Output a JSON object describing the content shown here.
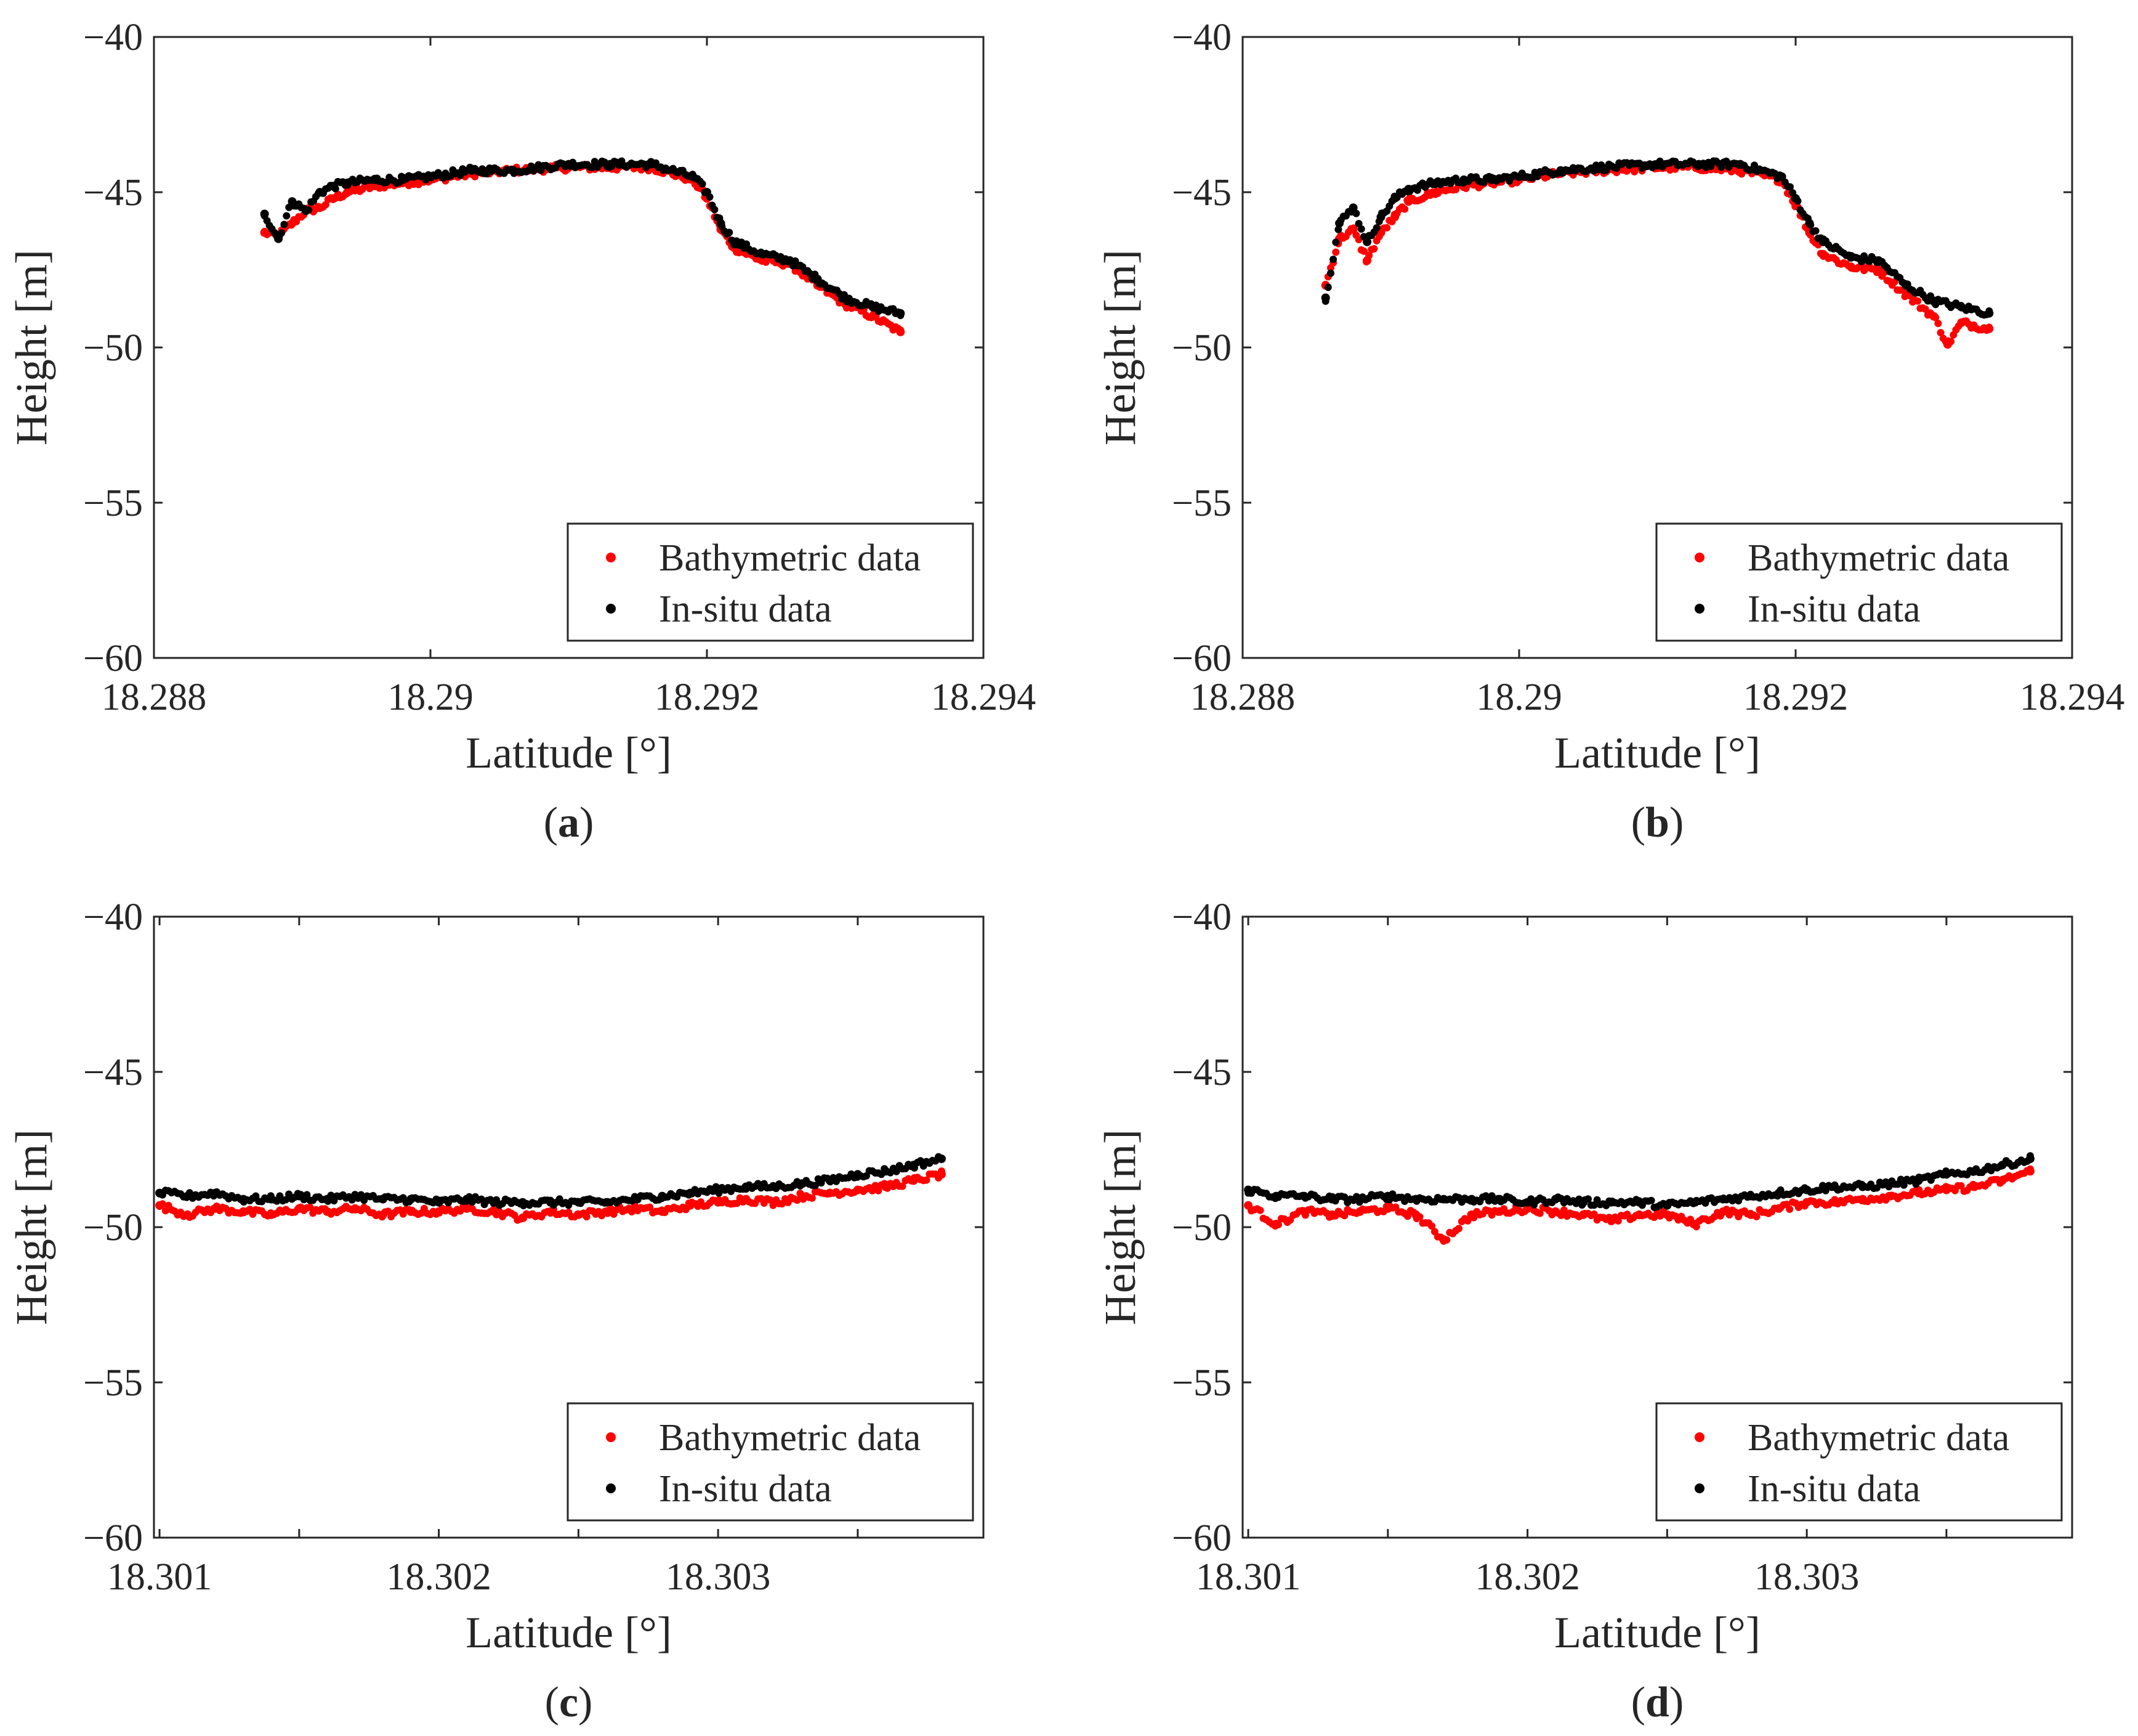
{
  "figure": {
    "colors": {
      "bathymetric": "#ff0000",
      "in_situ": "#000000",
      "axes": "#262626"
    }
  },
  "chart_data": [
    {
      "id": "a",
      "type": "scatter",
      "panel_label": {
        "open": "(",
        "letter": "a",
        "close": ")"
      },
      "xlabel": "Latitude [°]",
      "ylabel": "Height [m]",
      "xlim": [
        18.288,
        18.294
      ],
      "ylim": [
        -60,
        -40
      ],
      "xticks": [
        18.288,
        18.29,
        18.292,
        18.294
      ],
      "xtick_labels": [
        "18.288",
        "18.29",
        "18.292",
        "18.294"
      ],
      "yticks": [
        -60,
        -55,
        -50,
        -45,
        -40
      ],
      "ytick_labels": [
        "−60",
        "−55",
        "−50",
        "−45",
        "−40"
      ],
      "grid": false,
      "legend": {
        "position": "bottom-right",
        "entries": [
          "Bathymetric data",
          "In-situ data"
        ]
      },
      "series": [
        {
          "name": "Bathymetric data",
          "color": "#ff0000",
          "x": [
            18.2888,
            18.2889,
            18.289,
            18.2891,
            18.2892,
            18.2893,
            18.2894,
            18.2896,
            18.2898,
            18.29,
            18.2903,
            18.2906,
            18.291,
            18.2913,
            18.2916,
            18.2919,
            18.292,
            18.2921,
            18.2922,
            18.2924,
            18.2926,
            18.2928,
            18.293,
            18.2932,
            18.2934
          ],
          "y": [
            -46.3,
            -46.4,
            -46.0,
            -45.6,
            -45.5,
            -45.2,
            -45.0,
            -44.8,
            -44.7,
            -44.6,
            -44.4,
            -44.3,
            -44.2,
            -44.2,
            -44.2,
            -44.6,
            -45.2,
            -46.2,
            -46.8,
            -47.2,
            -47.3,
            -48.0,
            -48.6,
            -49.0,
            -49.5
          ]
        },
        {
          "name": "In-situ data",
          "color": "#000000",
          "x": [
            18.2888,
            18.2889,
            18.289,
            18.2891,
            18.2892,
            18.2893,
            18.2894,
            18.2896,
            18.2898,
            18.29,
            18.2903,
            18.2906,
            18.291,
            18.2913,
            18.2916,
            18.2919,
            18.292,
            18.2921,
            18.2922,
            18.2924,
            18.2926,
            18.2928,
            18.293,
            18.2932,
            18.2934
          ],
          "y": [
            -45.7,
            -46.5,
            -45.3,
            -45.6,
            -45.0,
            -44.8,
            -44.7,
            -44.6,
            -44.6,
            -44.5,
            -44.3,
            -44.3,
            -44.1,
            -44.1,
            -44.1,
            -44.5,
            -45.0,
            -46.0,
            -46.6,
            -47.0,
            -47.2,
            -47.8,
            -48.4,
            -48.7,
            -48.9
          ]
        }
      ]
    },
    {
      "id": "b",
      "type": "scatter",
      "panel_label": {
        "open": "(",
        "letter": "b",
        "close": ")"
      },
      "xlabel": "Latitude [°]",
      "ylabel": "Height [m]",
      "xlim": [
        18.288,
        18.294
      ],
      "ylim": [
        -60,
        -40
      ],
      "xticks": [
        18.288,
        18.29,
        18.292,
        18.294
      ],
      "xtick_labels": [
        "18.288",
        "18.29",
        "18.292",
        "18.294"
      ],
      "yticks": [
        -60,
        -55,
        -50,
        -45,
        -40
      ],
      "ytick_labels": [
        "−60",
        "−55",
        "−50",
        "−45",
        "−40"
      ],
      "grid": false,
      "legend": {
        "position": "bottom-right",
        "entries": [
          "Bathymetric data",
          "In-situ data"
        ]
      },
      "series": [
        {
          "name": "Bathymetric data",
          "color": "#ff0000",
          "x": [
            18.2886,
            18.2887,
            18.2888,
            18.2889,
            18.289,
            18.2891,
            18.2892,
            18.2894,
            18.2896,
            18.2898,
            18.29,
            18.2903,
            18.2906,
            18.291,
            18.2913,
            18.2916,
            18.2919,
            18.292,
            18.2921,
            18.2922,
            18.2924,
            18.2926,
            18.2928,
            18.293,
            18.2931,
            18.2932,
            18.2934
          ],
          "y": [
            -48.0,
            -46.5,
            -46.2,
            -47.2,
            -46.3,
            -45.8,
            -45.3,
            -45.0,
            -44.8,
            -44.7,
            -44.6,
            -44.4,
            -44.3,
            -44.2,
            -44.2,
            -44.3,
            -44.6,
            -45.4,
            -46.3,
            -47.0,
            -47.4,
            -47.5,
            -48.3,
            -49.0,
            -49.9,
            -49.2,
            -49.4
          ]
        },
        {
          "name": "In-situ data",
          "color": "#000000",
          "x": [
            18.2886,
            18.2887,
            18.2888,
            18.2889,
            18.289,
            18.2891,
            18.2892,
            18.2894,
            18.2896,
            18.2898,
            18.29,
            18.2903,
            18.2906,
            18.291,
            18.2913,
            18.2916,
            18.2919,
            18.292,
            18.2921,
            18.2922,
            18.2924,
            18.2926,
            18.2928,
            18.293,
            18.2932,
            18.2934
          ],
          "y": [
            -48.4,
            -46.0,
            -45.5,
            -46.6,
            -45.8,
            -45.2,
            -44.9,
            -44.7,
            -44.6,
            -44.6,
            -44.5,
            -44.3,
            -44.2,
            -44.1,
            -44.1,
            -44.1,
            -44.5,
            -45.2,
            -46.0,
            -46.6,
            -47.1,
            -47.2,
            -48.0,
            -48.5,
            -48.7,
            -48.9
          ]
        }
      ]
    },
    {
      "id": "c",
      "type": "scatter",
      "panel_label": {
        "open": "(",
        "letter": "c",
        "close": ")"
      },
      "xlabel": "Latitude [°]",
      "ylabel": "Height [m]",
      "xlim": [
        18.30098,
        18.30395
      ],
      "ylim": [
        -60,
        -40
      ],
      "xticks": [
        18.301,
        18.302,
        18.303
      ],
      "xtick_labels": [
        "18.301",
        "18.302",
        "18.303"
      ],
      "minor_xticks": [
        18.3015,
        18.3025,
        18.3035
      ],
      "yticks": [
        -60,
        -55,
        -50,
        -45,
        -40
      ],
      "ytick_labels": [
        "−60",
        "−55",
        "−50",
        "−45",
        "−40"
      ],
      "grid": false,
      "legend": {
        "position": "bottom-right",
        "entries": [
          "Bathymetric data",
          "In-situ data"
        ]
      },
      "series": [
        {
          "name": "Bathymetric data",
          "color": "#ff0000",
          "x": [
            18.301,
            18.3011,
            18.3012,
            18.3013,
            18.3014,
            18.3015,
            18.3016,
            18.3017,
            18.3018,
            18.3019,
            18.302,
            18.3021,
            18.3022,
            18.3023,
            18.3024,
            18.3025,
            18.3026,
            18.3027,
            18.3028,
            18.3029,
            18.303,
            18.3031,
            18.3032,
            18.3033,
            18.3034,
            18.3035,
            18.3036,
            18.3037,
            18.3038
          ],
          "y": [
            -49.3,
            -49.6,
            -49.4,
            -49.5,
            -49.6,
            -49.4,
            -49.5,
            -49.4,
            -49.6,
            -49.5,
            -49.5,
            -49.4,
            -49.5,
            -49.7,
            -49.5,
            -49.6,
            -49.5,
            -49.4,
            -49.5,
            -49.3,
            -49.2,
            -49.1,
            -49.2,
            -49.0,
            -48.9,
            -48.8,
            -48.7,
            -48.5,
            -48.3
          ]
        },
        {
          "name": "In-situ data",
          "color": "#000000",
          "x": [
            18.301,
            18.3011,
            18.3012,
            18.3013,
            18.3014,
            18.3015,
            18.3016,
            18.3017,
            18.3018,
            18.3019,
            18.302,
            18.3021,
            18.3022,
            18.3023,
            18.3024,
            18.3025,
            18.3026,
            18.3027,
            18.3028,
            18.3029,
            18.303,
            18.3031,
            18.3032,
            18.3033,
            18.3034,
            18.3035,
            18.3036,
            18.3037,
            18.3038
          ],
          "y": [
            -48.9,
            -49.0,
            -48.9,
            -49.1,
            -49.1,
            -49.0,
            -49.1,
            -49.0,
            -49.1,
            -49.1,
            -49.2,
            -49.1,
            -49.2,
            -49.2,
            -49.2,
            -49.2,
            -49.2,
            -49.1,
            -49.0,
            -48.9,
            -48.8,
            -48.7,
            -48.7,
            -48.6,
            -48.5,
            -48.3,
            -48.2,
            -48.0,
            -47.8
          ]
        }
      ]
    },
    {
      "id": "d",
      "type": "scatter",
      "panel_label": {
        "open": "(",
        "letter": "d",
        "close": ")"
      },
      "xlabel": "Latitude [°]",
      "ylabel": "Height [m]",
      "xlim": [
        18.30098,
        18.30395
      ],
      "ylim": [
        -60,
        -40
      ],
      "xticks": [
        18.301,
        18.302,
        18.303
      ],
      "xtick_labels": [
        "18.301",
        "18.302",
        "18.303"
      ],
      "minor_xticks": [
        18.3015,
        18.3025,
        18.3035
      ],
      "yticks": [
        -60,
        -55,
        -50,
        -45,
        -40
      ],
      "ytick_labels": [
        "−60",
        "−55",
        "−50",
        "−45",
        "−40"
      ],
      "grid": false,
      "legend": {
        "position": "bottom-right",
        "entries": [
          "Bathymetric data",
          "In-situ data"
        ]
      },
      "series": [
        {
          "name": "Bathymetric data",
          "color": "#ff0000",
          "x": [
            18.301,
            18.3011,
            18.3012,
            18.3013,
            18.3014,
            18.3015,
            18.3016,
            18.3017,
            18.3018,
            18.3019,
            18.302,
            18.3021,
            18.3022,
            18.3023,
            18.3024,
            18.3025,
            18.3026,
            18.3027,
            18.3028,
            18.3029,
            18.303,
            18.3031,
            18.3032,
            18.3033,
            18.3034,
            18.3035,
            18.3036,
            18.3037,
            18.3038
          ],
          "y": [
            -49.3,
            -49.9,
            -49.5,
            -49.6,
            -49.5,
            -49.4,
            -49.6,
            -50.4,
            -49.6,
            -49.5,
            -49.4,
            -49.5,
            -49.6,
            -49.8,
            -49.6,
            -49.6,
            -49.9,
            -49.5,
            -49.6,
            -49.4,
            -49.2,
            -49.2,
            -49.1,
            -49.0,
            -48.9,
            -48.8,
            -48.7,
            -48.5,
            -48.2
          ]
        },
        {
          "name": "In-situ data",
          "color": "#000000",
          "x": [
            18.301,
            18.3011,
            18.3012,
            18.3013,
            18.3014,
            18.3015,
            18.3016,
            18.3017,
            18.3018,
            18.3019,
            18.302,
            18.3021,
            18.3022,
            18.3023,
            18.3024,
            18.3025,
            18.3026,
            18.3027,
            18.3028,
            18.3029,
            18.303,
            18.3031,
            18.3032,
            18.3033,
            18.3034,
            18.3035,
            18.3036,
            18.3037,
            18.3038
          ],
          "y": [
            -48.8,
            -49.0,
            -49.0,
            -49.1,
            -49.1,
            -49.0,
            -49.1,
            -49.1,
            -49.1,
            -49.1,
            -49.2,
            -49.1,
            -49.2,
            -49.2,
            -49.2,
            -49.3,
            -49.2,
            -49.1,
            -49.0,
            -48.9,
            -48.8,
            -48.7,
            -48.7,
            -48.6,
            -48.5,
            -48.3,
            -48.2,
            -48.0,
            -47.8
          ]
        }
      ]
    }
  ]
}
